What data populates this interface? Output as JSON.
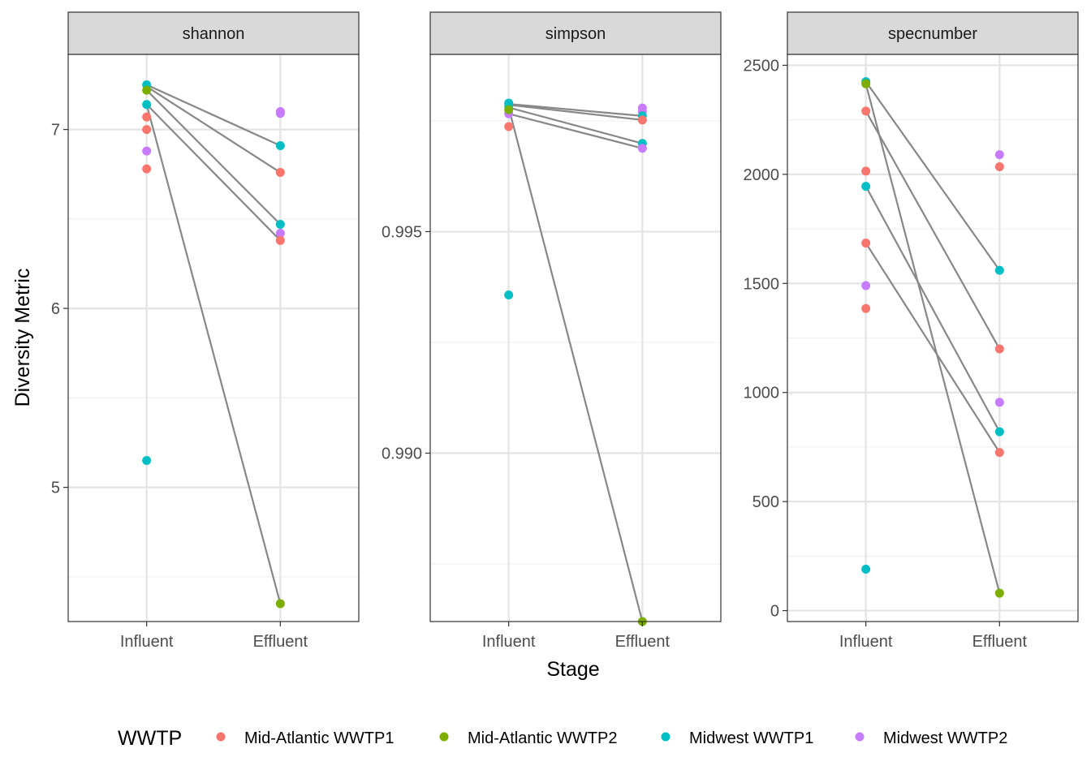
{
  "chart_data": {
    "type": "scatter",
    "facet_labels": [
      "shannon",
      "simpson",
      "specnumber"
    ],
    "xlabel": "Stage",
    "ylabel": "Diversity Metric",
    "categories": [
      "Influent",
      "Effluent"
    ],
    "legend": {
      "title": "WWTP",
      "position": "bottom",
      "entries": [
        {
          "name": "Mid-Atlantic WWTP1",
          "color": "#F8766D"
        },
        {
          "name": "Mid-Atlantic WWTP2",
          "color": "#7CAE00"
        },
        {
          "name": "Midwest WWTP1",
          "color": "#00BFC4"
        },
        {
          "name": "Midwest WWTP2",
          "color": "#C77CFF"
        }
      ]
    },
    "line_color": "#888888",
    "grid": true,
    "panels": [
      {
        "metric": "shannon",
        "ylim": [
          4.25,
          7.42
        ],
        "ticks": [
          5,
          6,
          7
        ],
        "tick_labels": [
          "5",
          "6",
          "7"
        ],
        "points": [
          {
            "x": "Influent",
            "y": 7.25,
            "group": 2
          },
          {
            "x": "Influent",
            "y": 7.22,
            "group": 1
          },
          {
            "x": "Influent",
            "y": 7.14,
            "group": 2
          },
          {
            "x": "Influent",
            "y": 7.07,
            "group": 0
          },
          {
            "x": "Influent",
            "y": 7.0,
            "group": 0
          },
          {
            "x": "Influent",
            "y": 6.88,
            "group": 3
          },
          {
            "x": "Influent",
            "y": 6.78,
            "group": 0
          },
          {
            "x": "Influent",
            "y": 5.15,
            "group": 2
          },
          {
            "x": "Effluent",
            "y": 7.1,
            "group": 3
          },
          {
            "x": "Effluent",
            "y": 7.09,
            "group": 3
          },
          {
            "x": "Effluent",
            "y": 6.91,
            "group": 2
          },
          {
            "x": "Effluent",
            "y": 6.76,
            "group": 0
          },
          {
            "x": "Effluent",
            "y": 6.47,
            "group": 2
          },
          {
            "x": "Effluent",
            "y": 6.42,
            "group": 3
          },
          {
            "x": "Effluent",
            "y": 6.38,
            "group": 0
          },
          {
            "x": "Effluent",
            "y": 4.35,
            "group": 1
          }
        ],
        "pairs": [
          [
            7.25,
            6.91
          ],
          [
            7.24,
            6.76
          ],
          [
            7.22,
            6.47
          ],
          [
            7.14,
            6.38
          ],
          [
            7.14,
            4.35
          ]
        ]
      },
      {
        "metric": "simpson",
        "ylim": [
          0.9862,
          0.999
        ],
        "ticks": [
          0.99,
          0.995
        ],
        "tick_labels": [
          "0.990",
          "0.995"
        ],
        "points": [
          {
            "x": "Influent",
            "y": 0.9979,
            "group": 2
          },
          {
            "x": "Influent",
            "y": 0.99782,
            "group": 2
          },
          {
            "x": "Influent",
            "y": 0.99766,
            "group": 3
          },
          {
            "x": "Influent",
            "y": 0.99737,
            "group": 0
          },
          {
            "x": "Influent",
            "y": 0.99775,
            "group": 1
          },
          {
            "x": "Influent",
            "y": 0.99357,
            "group": 2
          },
          {
            "x": "Effluent",
            "y": 0.99779,
            "group": 3
          },
          {
            "x": "Effluent",
            "y": 0.99771,
            "group": 3
          },
          {
            "x": "Effluent",
            "y": 0.99761,
            "group": 2
          },
          {
            "x": "Effluent",
            "y": 0.99752,
            "group": 0
          },
          {
            "x": "Effluent",
            "y": 0.99699,
            "group": 2
          },
          {
            "x": "Effluent",
            "y": 0.99688,
            "group": 3
          },
          {
            "x": "Effluent",
            "y": 0.9862,
            "group": 1
          }
        ],
        "pairs": [
          [
            0.99788,
            0.99761
          ],
          [
            0.99786,
            0.99752
          ],
          [
            0.9978,
            0.99699
          ],
          [
            0.99766,
            0.99688
          ],
          [
            0.9978,
            0.9862
          ]
        ]
      },
      {
        "metric": "specnumber",
        "ylim": [
          -50,
          2550
        ],
        "ticks": [
          0,
          500,
          1000,
          1500,
          2000,
          2500
        ],
        "tick_labels": [
          "0",
          "500",
          "1000",
          "1500",
          "2000",
          "2500"
        ],
        "points": [
          {
            "x": "Influent",
            "y": 2425,
            "group": 2
          },
          {
            "x": "Influent",
            "y": 2415,
            "group": 1
          },
          {
            "x": "Influent",
            "y": 2290,
            "group": 0
          },
          {
            "x": "Influent",
            "y": 2015,
            "group": 0
          },
          {
            "x": "Influent",
            "y": 1945,
            "group": 2
          },
          {
            "x": "Influent",
            "y": 1685,
            "group": 0
          },
          {
            "x": "Influent",
            "y": 1490,
            "group": 3
          },
          {
            "x": "Influent",
            "y": 1385,
            "group": 0
          },
          {
            "x": "Influent",
            "y": 190,
            "group": 2
          },
          {
            "x": "Effluent",
            "y": 2090,
            "group": 3
          },
          {
            "x": "Effluent",
            "y": 2035,
            "group": 0
          },
          {
            "x": "Effluent",
            "y": 1560,
            "group": 2
          },
          {
            "x": "Effluent",
            "y": 1200,
            "group": 0
          },
          {
            "x": "Effluent",
            "y": 955,
            "group": 3
          },
          {
            "x": "Effluent",
            "y": 820,
            "group": 2
          },
          {
            "x": "Effluent",
            "y": 725,
            "group": 0
          },
          {
            "x": "Effluent",
            "y": 80,
            "group": 1
          }
        ],
        "pairs": [
          [
            2425,
            1560
          ],
          [
            2290,
            1200
          ],
          [
            1945,
            820
          ],
          [
            1685,
            725
          ],
          [
            2415,
            80
          ]
        ]
      }
    ]
  }
}
